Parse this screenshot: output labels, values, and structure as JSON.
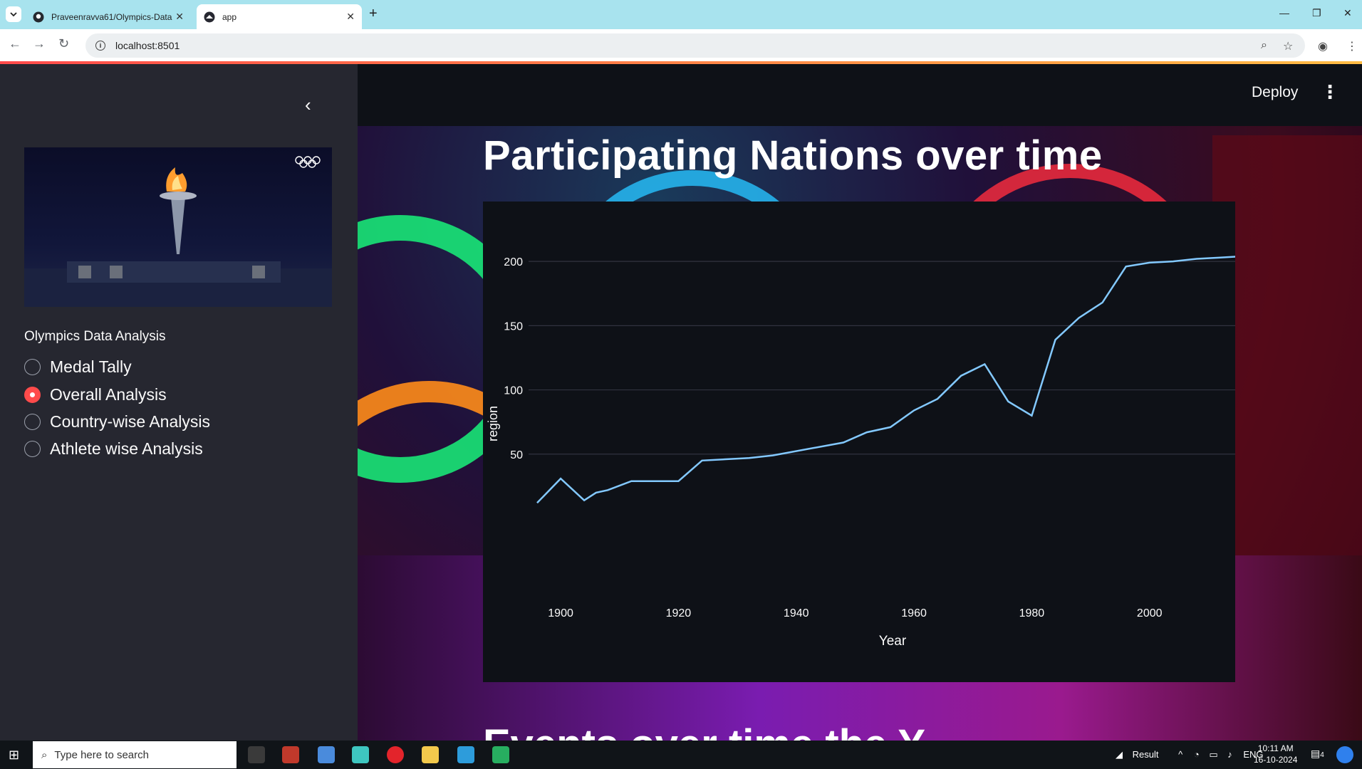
{
  "browser": {
    "tabs": [
      {
        "title": "Praveenravva61/Olympics-Data",
        "icon": "github-icon"
      },
      {
        "title": "app",
        "icon": "streamlit-icon"
      }
    ],
    "url": "localhost:8501"
  },
  "header": {
    "deploy_label": "Deploy"
  },
  "sidebar": {
    "radio_label": "Olympics Data Analysis",
    "options": [
      "Medal Tally",
      "Overall Analysis",
      "Country-wise Analysis",
      "Athlete wise Analysis"
    ],
    "selected": "Overall Analysis"
  },
  "main": {
    "title": "Participating Nations over time",
    "next_title_partial": "Events over time the Y"
  },
  "chart_data": {
    "type": "line",
    "title": "",
    "xlabel": "Year",
    "ylabel": "region",
    "xlim": [
      1896,
      2016
    ],
    "ylim": [
      0,
      230
    ],
    "x_ticks": [
      1900,
      1920,
      1940,
      1960,
      1980,
      2000
    ],
    "y_ticks": [
      50,
      100,
      150,
      200
    ],
    "grid": true,
    "series": [
      {
        "color": "#83c9ff",
        "x": [
          1896,
          1900,
          1904,
          1906,
          1908,
          1912,
          1920,
          1924,
          1928,
          1932,
          1936,
          1948,
          1952,
          1956,
          1960,
          1964,
          1968,
          1972,
          1976,
          1980,
          1984,
          1988,
          1992,
          1996,
          2000,
          2004,
          2008,
          2012,
          2016
        ],
        "y": [
          12,
          31,
          14,
          20,
          22,
          29,
          29,
          45,
          46,
          47,
          49,
          59,
          67,
          71,
          84,
          93,
          111,
          120,
          91,
          80,
          139,
          156,
          168,
          196,
          199,
          200,
          202,
          203,
          204
        ]
      }
    ]
  },
  "taskbar": {
    "search_placeholder": "Type here to search",
    "tray_app": "Result",
    "language": "ENG",
    "time": "10:11 AM",
    "date": "16-10-2024",
    "notification_count": "4"
  }
}
